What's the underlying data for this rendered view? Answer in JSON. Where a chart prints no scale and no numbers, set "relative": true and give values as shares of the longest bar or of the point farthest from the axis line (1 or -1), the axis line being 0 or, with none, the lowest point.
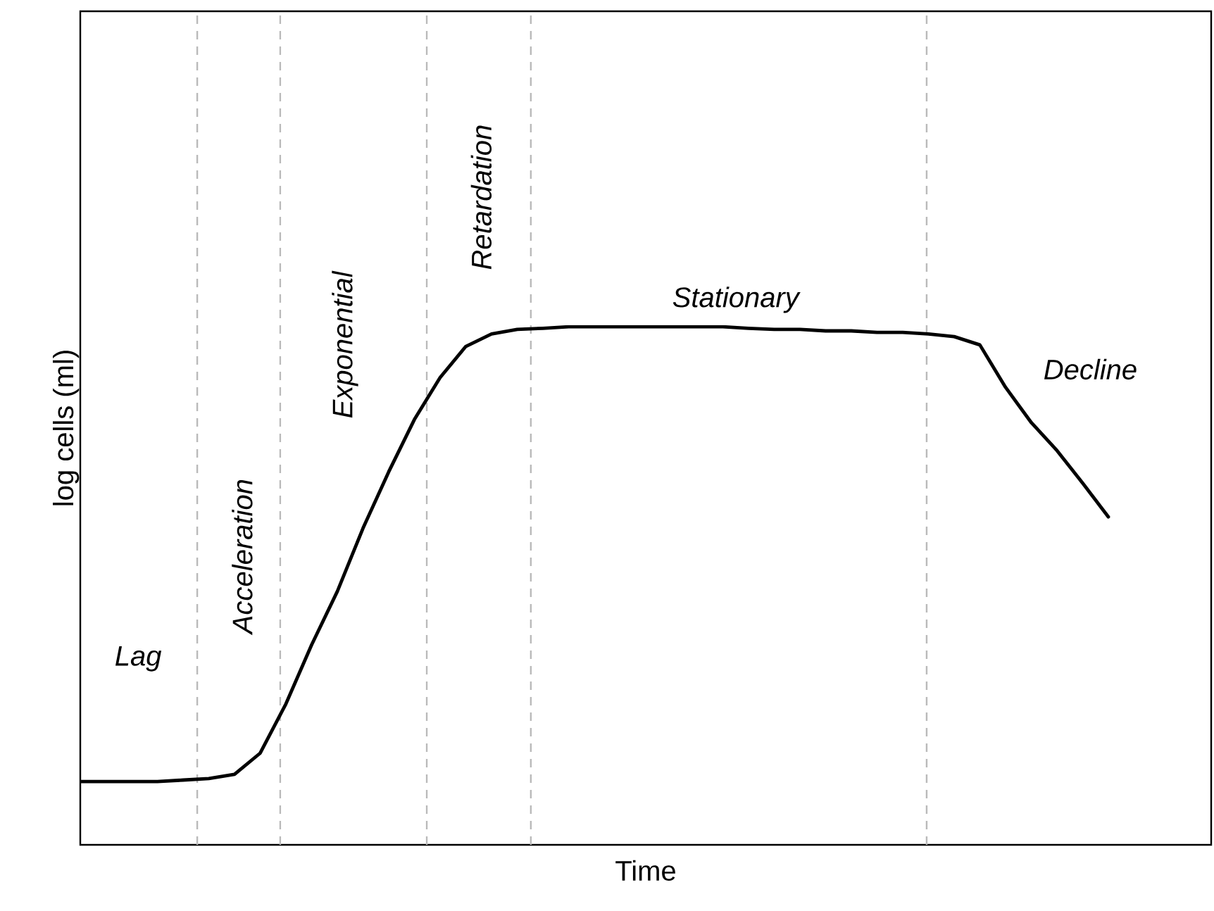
{
  "chart_data": {
    "type": "line",
    "relative": true,
    "xlabel": "Time",
    "ylabel": "log cells (ml)",
    "color": "#000000",
    "categories": [
      null,
      null,
      null,
      null,
      null,
      null,
      null,
      null,
      null,
      null,
      null,
      null,
      null,
      null,
      null,
      null,
      null,
      null,
      null,
      null,
      null,
      null,
      null,
      null,
      null,
      null,
      null,
      null,
      null,
      null,
      null,
      null,
      null,
      null,
      null,
      null,
      null,
      null,
      null,
      null,
      null,
      null,
      null,
      null,
      null
    ],
    "values": [
      0.122,
      0.122,
      0.122,
      0.122,
      0.125,
      0.128,
      0.136,
      0.177,
      0.272,
      0.386,
      0.489,
      0.611,
      0.72,
      0.821,
      0.902,
      0.962,
      0.986,
      0.995,
      0.997,
      1,
      1,
      1,
      1,
      1,
      1,
      1,
      0.997,
      0.995,
      0.995,
      0.992,
      0.992,
      0.989,
      0.989,
      0.986,
      0.981,
      0.965,
      0.883,
      0.815,
      0.761,
      0.698,
      0.633,
      null,
      null,
      null,
      null
    ],
    "annotations": [
      "Lag",
      "Acceleration",
      "Exponential",
      "Retardation",
      "Stationary",
      "Decline"
    ]
  }
}
